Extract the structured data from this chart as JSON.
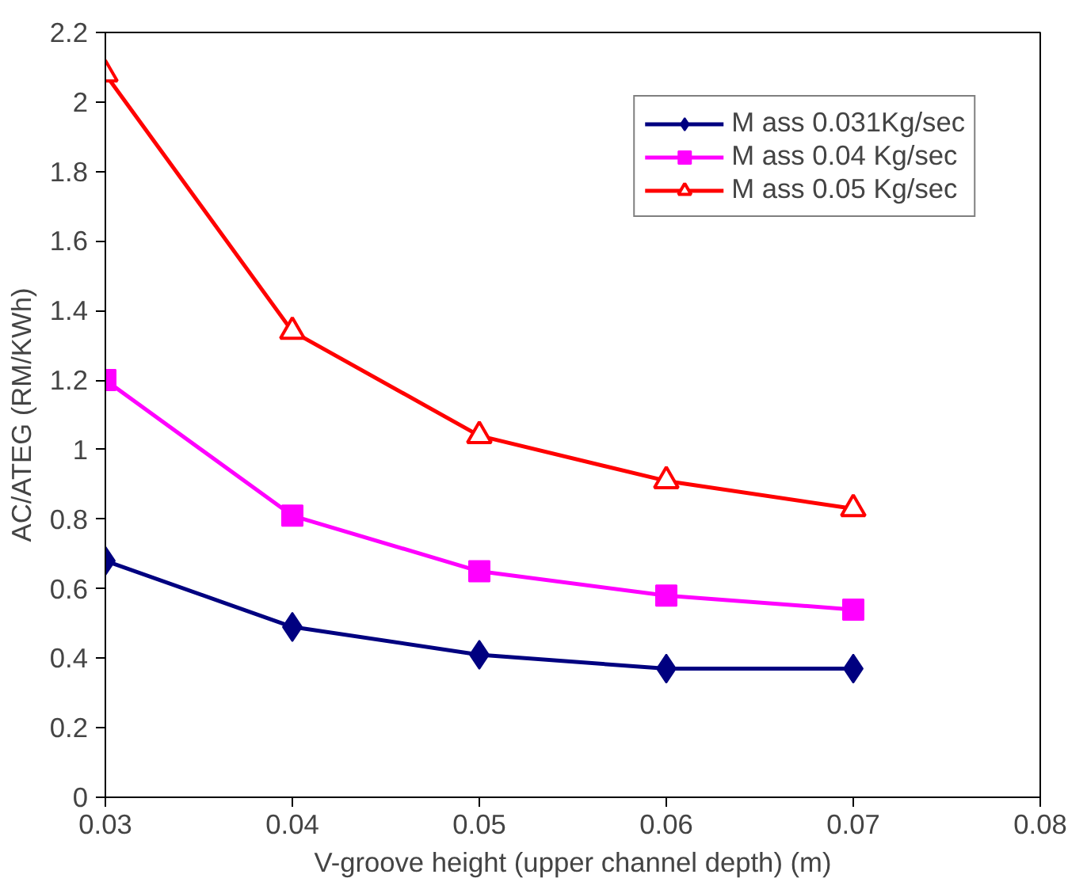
{
  "chart_data": {
    "type": "line",
    "xlabel": "V-groove height (upper channel depth) (m)",
    "ylabel": "AC/ATEG (RM/KWh)",
    "x": [
      0.03,
      0.04,
      0.05,
      0.06,
      0.07
    ],
    "xlim": [
      0.03,
      0.08
    ],
    "xticks": [
      0.03,
      0.04,
      0.05,
      0.06,
      0.07,
      0.08
    ],
    "ylim": [
      0,
      2.2
    ],
    "yticks": [
      0,
      0.2,
      0.4,
      0.6,
      0.8,
      1,
      1.2,
      1.4,
      1.6,
      1.8,
      2,
      2.2
    ],
    "grid": false,
    "legend": "top right",
    "line_style": "solid",
    "series": [
      {
        "name": "M ass 0.031Kg/sec",
        "color": "#000080",
        "marker": "diamond",
        "values": [
          0.68,
          0.49,
          0.41,
          0.37,
          0.37
        ]
      },
      {
        "name": "M ass 0.04 Kg/sec",
        "color": "#ff00ff",
        "marker": "square",
        "values": [
          1.2,
          0.81,
          0.65,
          0.58,
          0.54
        ]
      },
      {
        "name": "M ass 0.05 Kg/sec",
        "color": "#ff0000",
        "marker": "triangle",
        "values": [
          2.08,
          1.34,
          1.04,
          0.91,
          0.83
        ]
      }
    ]
  }
}
